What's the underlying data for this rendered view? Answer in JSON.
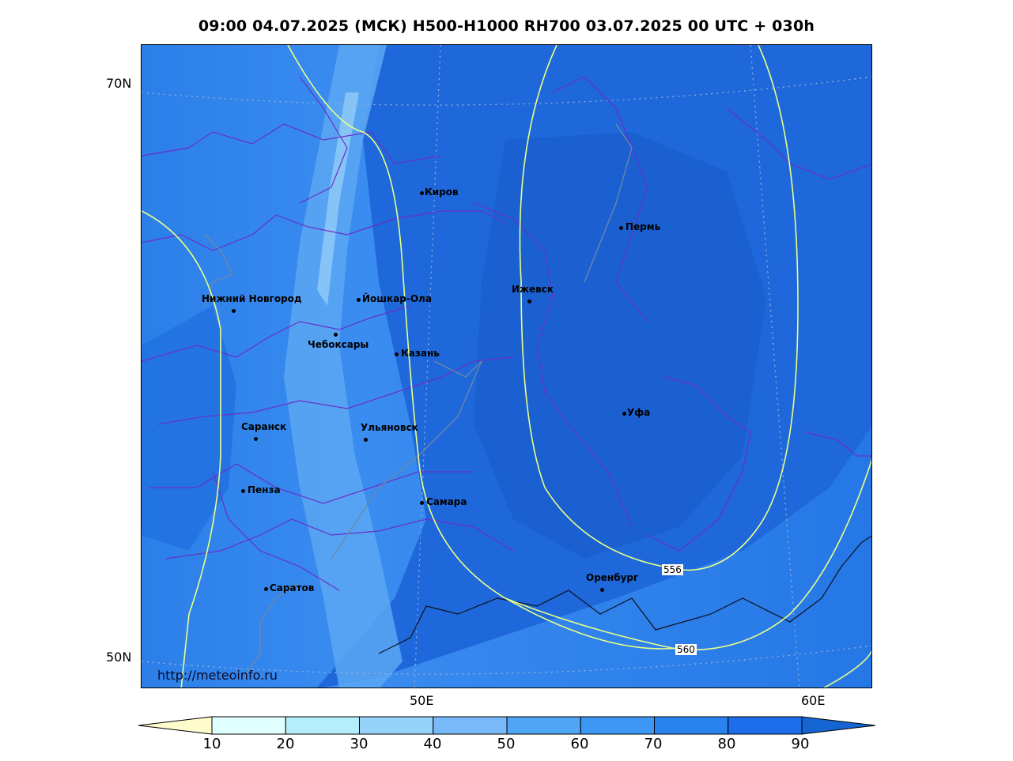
{
  "title": "09:00 04.07.2025 (МСК) H500-H1000 RH700 03.07.2025 00 UTC + 030h",
  "watermark": "http://meteoinfo.ru",
  "latitude_labels": [
    "70N",
    "50N"
  ],
  "longitude_labels": [
    "50E",
    "60E"
  ],
  "cities": [
    {
      "name": "Киров"
    },
    {
      "name": "Пермь"
    },
    {
      "name": "Нижний Новгород"
    },
    {
      "name": "Йошкар-Ола"
    },
    {
      "name": "Ижевск"
    },
    {
      "name": "Чебоксары"
    },
    {
      "name": "Казань"
    },
    {
      "name": "Уфа"
    },
    {
      "name": "Саранск"
    },
    {
      "name": "Ульяновск"
    },
    {
      "name": "Пенза"
    },
    {
      "name": "Самара"
    },
    {
      "name": "Оренбург"
    },
    {
      "name": "Саратов"
    }
  ],
  "contour_labels": [
    "556",
    "560"
  ],
  "colorbar": {
    "ticks": [
      "10",
      "20",
      "30",
      "40",
      "50",
      "60",
      "70",
      "80",
      "90"
    ],
    "colors": [
      "#fffccc",
      "#e0ffff",
      "#b4eefa",
      "#96d2fa",
      "#78b9fa",
      "#50a5f5",
      "#3c97f5",
      "#2882f0",
      "#1e6eeb",
      "#1464d2"
    ]
  }
}
